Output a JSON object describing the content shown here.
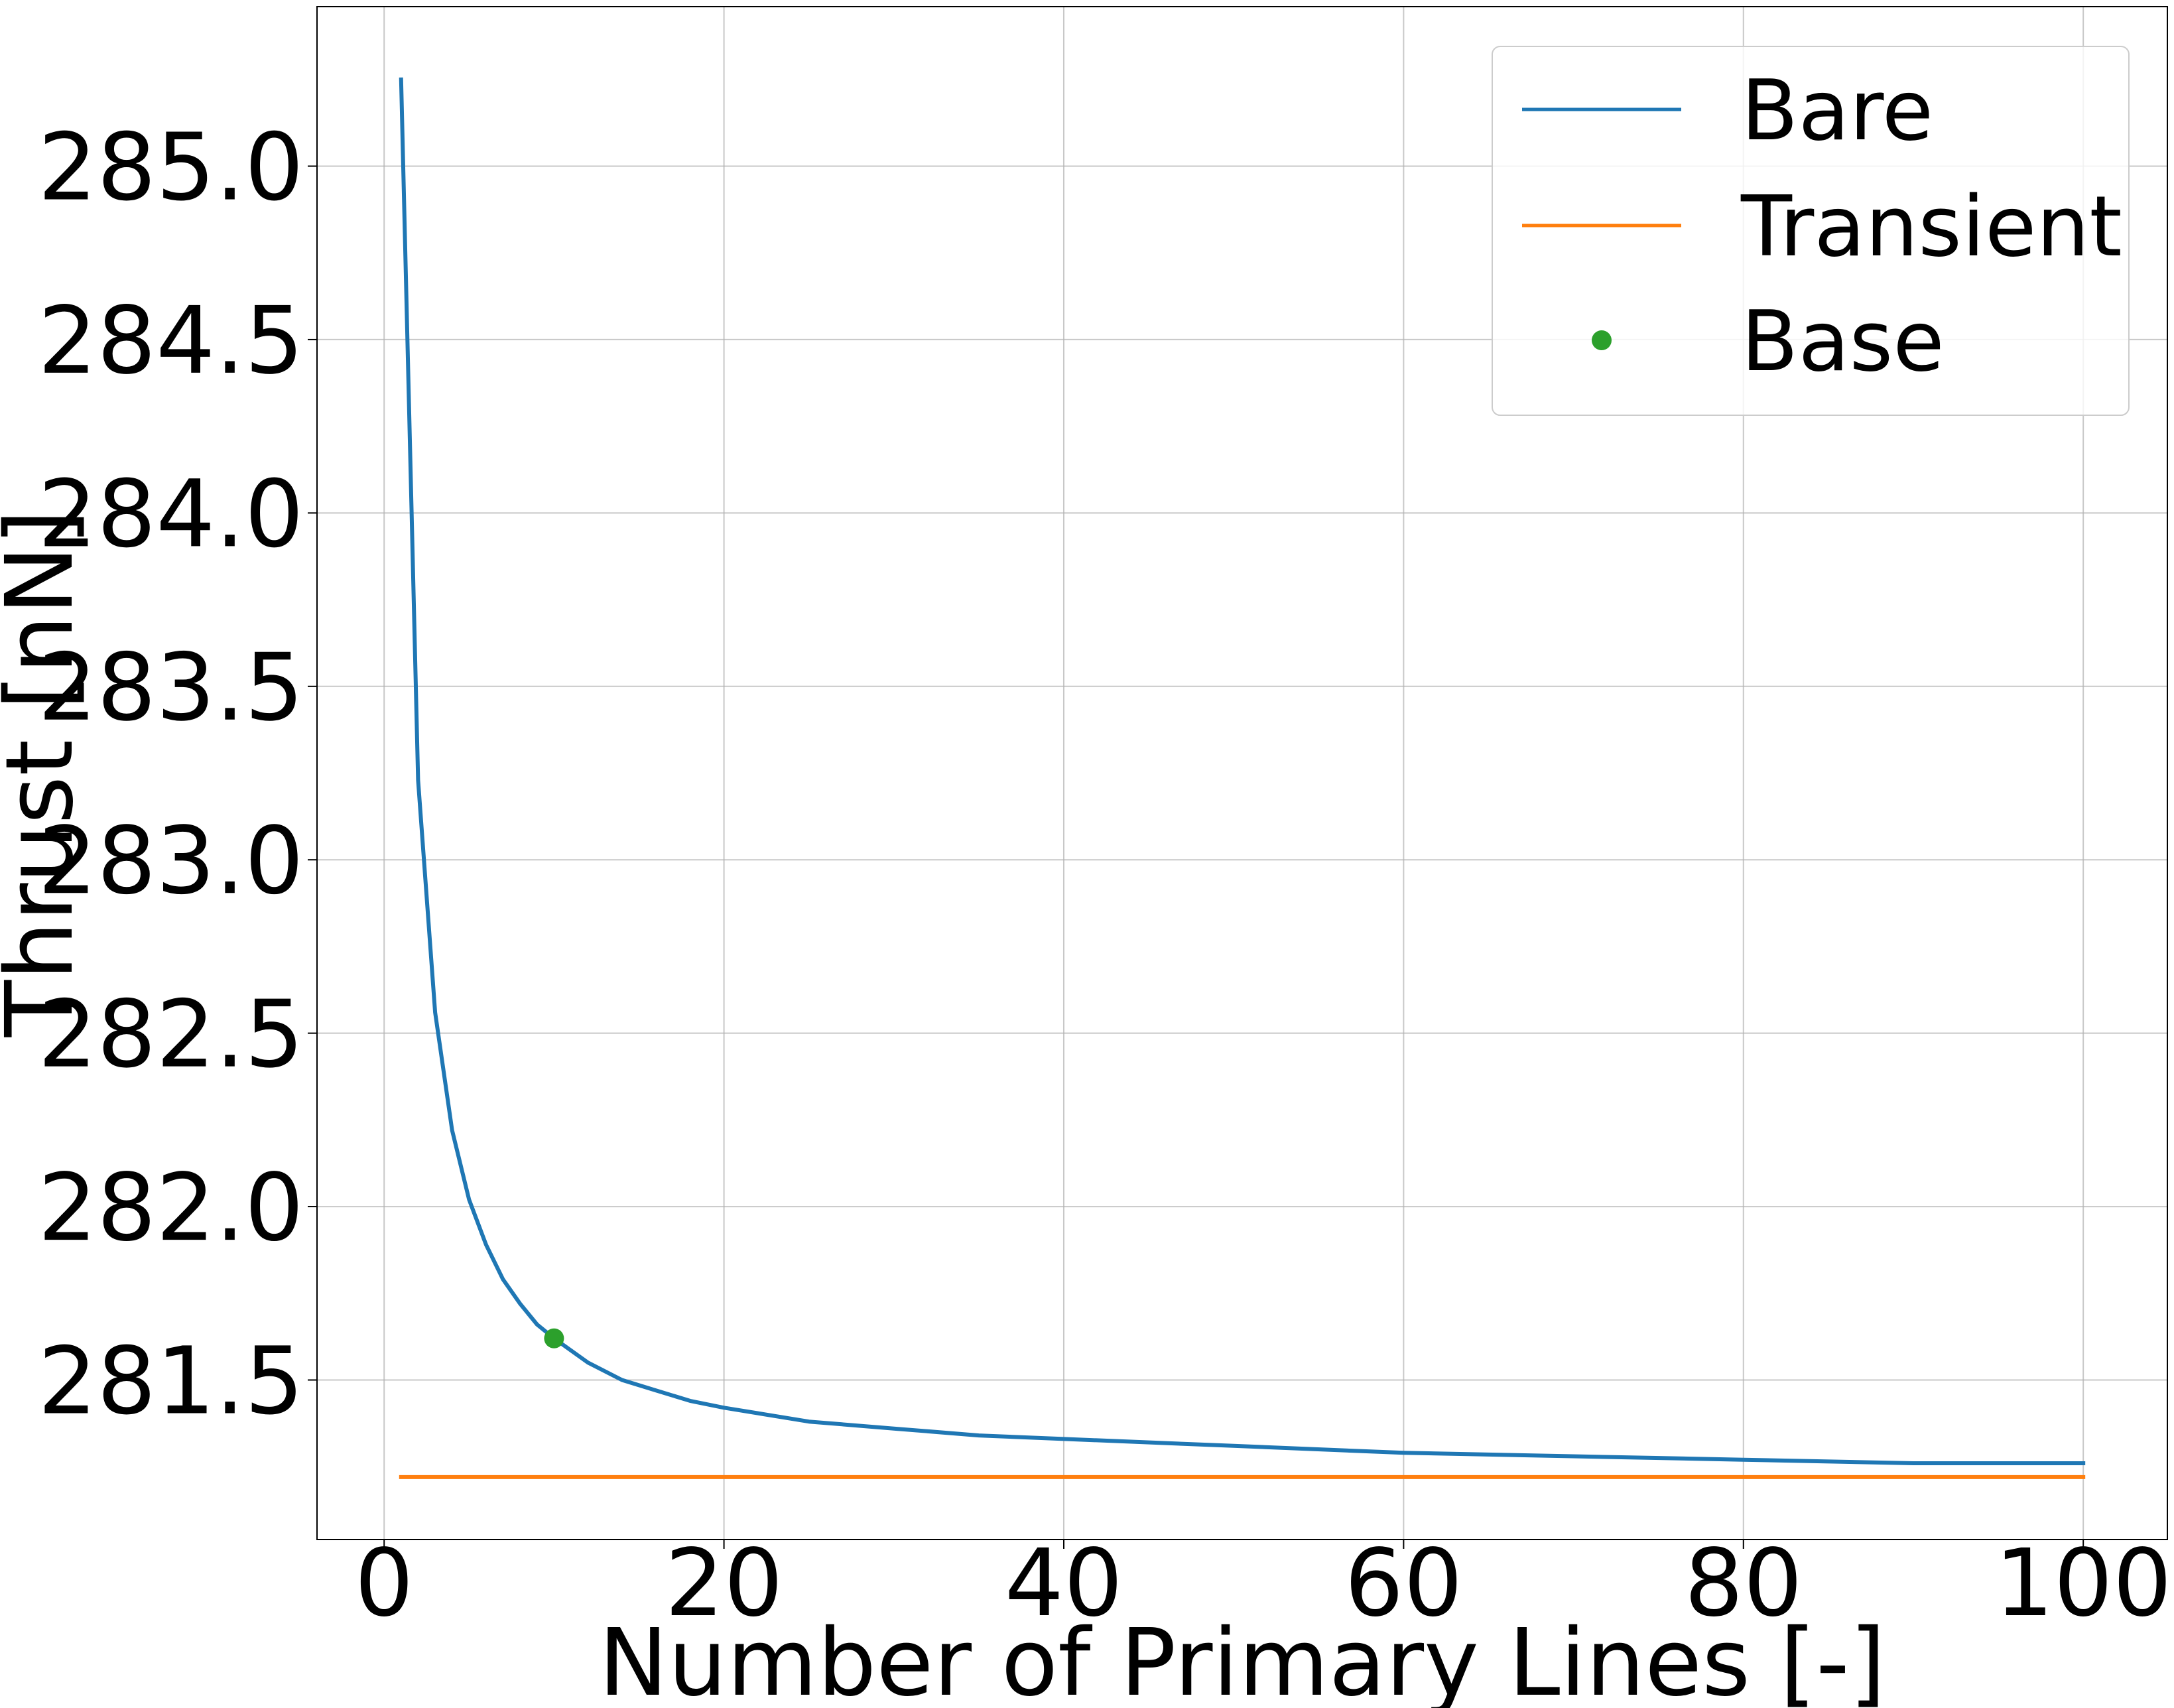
{
  "chart_data": {
    "type": "line",
    "xlabel": "Number of Primary Lines [-]",
    "ylabel": "Thrust [nN]",
    "xlim": [
      -3.95,
      104.95
    ],
    "ylim": [
      281.04,
      285.46
    ],
    "xticks": [
      0,
      20,
      40,
      60,
      80,
      100
    ],
    "xtick_labels": [
      "0",
      "20",
      "40",
      "60",
      "80",
      "100"
    ],
    "yticks": [
      281.5,
      282.0,
      282.5,
      283.0,
      283.5,
      284.0,
      284.5,
      285.0
    ],
    "ytick_labels": [
      "281.5",
      "282.0",
      "282.5",
      "283.0",
      "283.5",
      "284.0",
      "284.5",
      "285.0"
    ],
    "grid": true,
    "legend_position": "top-right",
    "series": [
      {
        "name": "Bare",
        "color": "#1f77b4",
        "style": "line",
        "x": [
          1,
          2,
          3,
          4,
          5,
          6,
          7,
          8,
          9,
          10,
          12,
          14,
          16,
          18,
          20,
          25,
          30,
          35,
          40,
          50,
          60,
          70,
          80,
          90,
          100
        ],
        "y": [
          285.25,
          283.23,
          282.56,
          282.22,
          282.02,
          281.89,
          281.79,
          281.72,
          281.66,
          281.62,
          281.55,
          281.5,
          281.47,
          281.44,
          281.42,
          281.38,
          281.36,
          281.34,
          281.33,
          281.31,
          281.29,
          281.28,
          281.27,
          281.26,
          281.26
        ]
      },
      {
        "name": "Transient",
        "color": "#ff7f0e",
        "style": "line",
        "x": [
          1,
          100
        ],
        "y": [
          281.22,
          281.22
        ]
      },
      {
        "name": "Base",
        "color": "#2ca02c",
        "style": "marker",
        "x": [
          10
        ],
        "y": [
          281.62
        ]
      }
    ]
  }
}
